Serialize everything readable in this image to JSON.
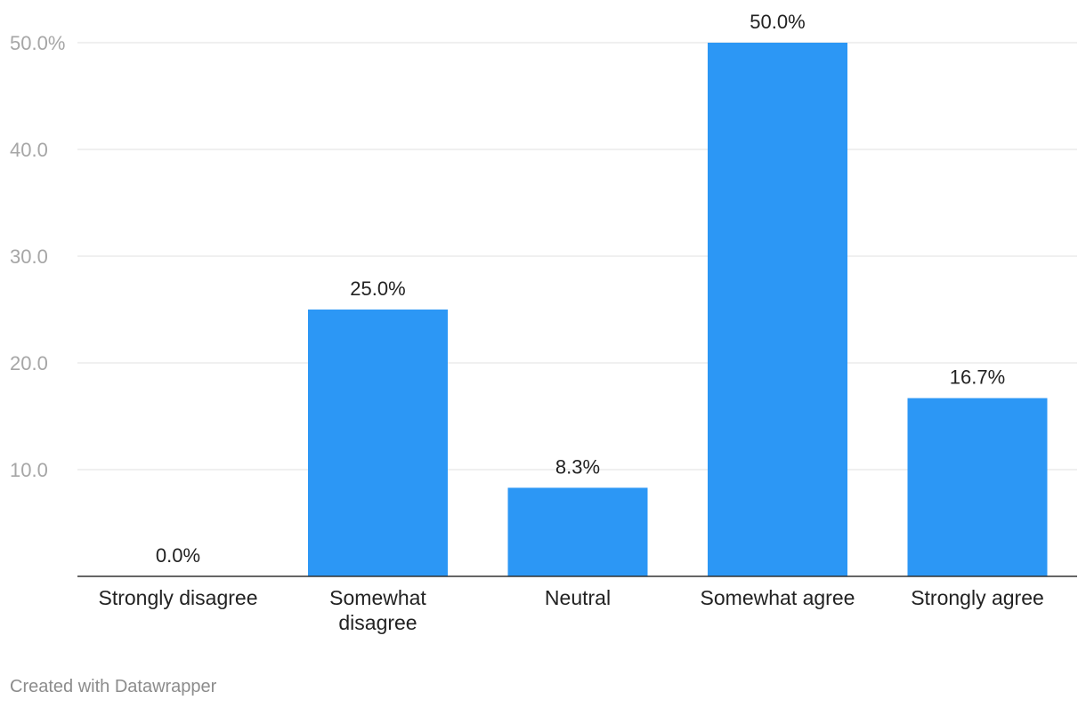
{
  "chart_data": {
    "type": "bar",
    "title": "",
    "xlabel": "",
    "ylabel": "",
    "categories": [
      [
        "Strongly disagree"
      ],
      [
        "Somewhat",
        "disagree"
      ],
      [
        "Neutral"
      ],
      [
        "Somewhat agree"
      ],
      [
        "Strongly agree"
      ]
    ],
    "values": [
      0.0,
      25.0,
      8.3,
      50.0,
      16.7
    ],
    "value_labels": [
      "0.0%",
      "25.0%",
      "8.3%",
      "50.0%",
      "16.7%"
    ],
    "ylim": [
      0,
      50
    ],
    "yticks": [
      10,
      20,
      30,
      40,
      50
    ],
    "ytick_labels": [
      "10.0",
      "20.0",
      "30.0",
      "40.0",
      "50.0%"
    ],
    "grid": true,
    "bar_color": "#2c97f5"
  },
  "footer": {
    "credit": "Created with Datawrapper"
  }
}
